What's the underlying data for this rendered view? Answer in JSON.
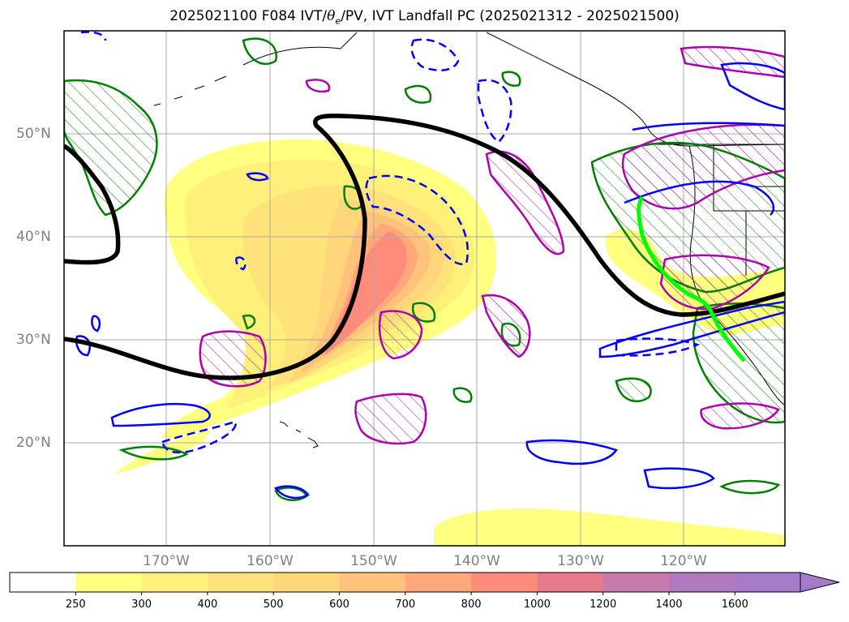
{
  "title": {
    "prefix": "2025021100 F084 IVT/",
    "theta": "θ",
    "sub": "e",
    "suffix": "/PV, IVT Landfall PC (2025021312 - 2025021500)"
  },
  "lat_ticks": [
    "50°N",
    "40°N",
    "30°N",
    "20°N"
  ],
  "lon_ticks": [
    "170°W",
    "160°W",
    "150°W",
    "140°W",
    "130°W",
    "120°W"
  ],
  "colorbar": {
    "ticks": [
      "250",
      "300",
      "400",
      "500",
      "600",
      "700",
      "800",
      "1000",
      "1200",
      "1400",
      "1600"
    ],
    "colors": [
      "#ffffff",
      "#ffff80",
      "#fff07a",
      "#ffe27a",
      "#ffd67a",
      "#ffc27a",
      "#ffa87a",
      "#ff8c7a",
      "#e87a8a",
      "#c77aac",
      "#b07ac0",
      "#a67ac8"
    ]
  },
  "colors": {
    "theta_contour": "#000000",
    "pv_positive": "#0000ff",
    "green_contour": "#008000",
    "magenta_contour": "#b000b0",
    "landfall_track": "#00ff00",
    "coast": "#000000"
  }
}
